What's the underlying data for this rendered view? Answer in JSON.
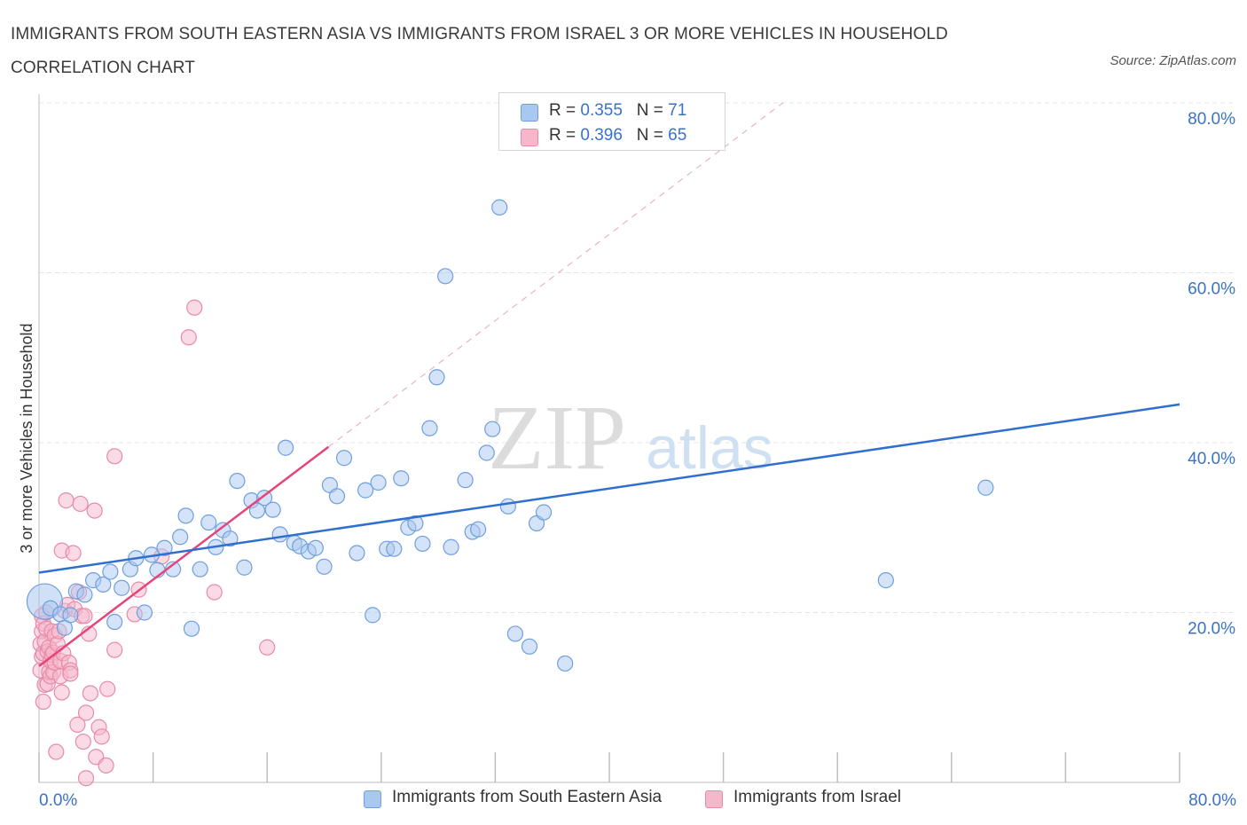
{
  "title": "IMMIGRANTS FROM SOUTH EASTERN ASIA VS IMMIGRANTS FROM ISRAEL 3 OR MORE VEHICLES IN HOUSEHOLD CORRELATION CHART",
  "source": "Source: ZipAtlas.com",
  "watermark": {
    "zip": "ZIP",
    "atlas": "atlas"
  },
  "legend_top": [
    {
      "r_label": "R = ",
      "r_value": "0.355",
      "n_label": "N = ",
      "n_value": "71"
    },
    {
      "r_label": "R = ",
      "r_value": "0.396",
      "n_label": "N = ",
      "n_value": "65"
    }
  ],
  "colors": {
    "blue_fill": "#a9c8f0",
    "blue_stroke": "#6f9fde",
    "blue_line": "#2f6fd0",
    "pink_fill": "#f5b8cb",
    "pink_stroke": "#e88aa7",
    "pink_line": "#e5457a",
    "axis_value": "#3a72c8",
    "grid": "#e4e4e4"
  },
  "chart_data": {
    "type": "scatter",
    "title": "IMMIGRANTS FROM SOUTH EASTERN ASIA VS IMMIGRANTS FROM ISRAEL 3 OR MORE VEHICLES IN HOUSEHOLD CORRELATION CHART",
    "xlabel": "",
    "ylabel": "3 or more Vehicles in Household",
    "xlim": [
      0,
      80
    ],
    "ylim": [
      0,
      80
    ],
    "x_tick_labels": [
      "0.0%",
      "80.0%"
    ],
    "y_tick_values": [
      20,
      40,
      60,
      80
    ],
    "y_tick_labels": [
      "20.0%",
      "40.0%",
      "60.0%",
      "80.0%"
    ],
    "grid": true,
    "legend_position": "top-center",
    "series": [
      {
        "name": "Immigrants from South Eastern Asia",
        "r": 0.355,
        "n": 71,
        "trend": {
          "x": [
            0,
            80
          ],
          "y": [
            24.7,
            44.5
          ]
        },
        "points": [
          [
            0.4,
            21.3
          ],
          [
            0.8,
            20.5
          ],
          [
            1.5,
            19.8
          ],
          [
            1.8,
            18.2
          ],
          [
            2.2,
            19.7
          ],
          [
            2.6,
            22.5
          ],
          [
            3.2,
            22.1
          ],
          [
            3.8,
            23.8
          ],
          [
            4.5,
            23.3
          ],
          [
            5.0,
            24.8
          ],
          [
            5.3,
            18.9
          ],
          [
            5.8,
            22.9
          ],
          [
            6.4,
            25.1
          ],
          [
            6.8,
            26.4
          ],
          [
            7.4,
            20.0
          ],
          [
            7.9,
            26.8
          ],
          [
            8.3,
            25.0
          ],
          [
            8.8,
            27.6
          ],
          [
            9.4,
            25.1
          ],
          [
            9.9,
            28.9
          ],
          [
            10.3,
            31.4
          ],
          [
            10.7,
            18.1
          ],
          [
            11.3,
            25.1
          ],
          [
            11.9,
            30.6
          ],
          [
            12.4,
            27.7
          ],
          [
            12.9,
            29.7
          ],
          [
            13.4,
            28.7
          ],
          [
            13.9,
            35.5
          ],
          [
            14.4,
            25.3
          ],
          [
            14.9,
            33.2
          ],
          [
            15.3,
            32.0
          ],
          [
            15.8,
            33.5
          ],
          [
            16.4,
            32.1
          ],
          [
            16.9,
            29.2
          ],
          [
            17.3,
            39.4
          ],
          [
            17.9,
            28.2
          ],
          [
            18.3,
            27.8
          ],
          [
            18.9,
            27.2
          ],
          [
            19.4,
            27.6
          ],
          [
            20.0,
            25.4
          ],
          [
            20.4,
            35.0
          ],
          [
            20.9,
            33.7
          ],
          [
            21.4,
            38.2
          ],
          [
            22.3,
            27.0
          ],
          [
            22.9,
            34.4
          ],
          [
            23.4,
            19.7
          ],
          [
            23.8,
            35.3
          ],
          [
            24.4,
            27.5
          ],
          [
            24.9,
            27.5
          ],
          [
            25.4,
            35.8
          ],
          [
            25.9,
            30.0
          ],
          [
            26.4,
            30.5
          ],
          [
            26.9,
            28.1
          ],
          [
            27.4,
            41.7
          ],
          [
            27.9,
            47.7
          ],
          [
            28.5,
            59.6
          ],
          [
            28.9,
            27.7
          ],
          [
            29.9,
            35.6
          ],
          [
            30.4,
            29.5
          ],
          [
            30.8,
            29.8
          ],
          [
            31.4,
            38.8
          ],
          [
            31.8,
            41.6
          ],
          [
            32.3,
            67.7
          ],
          [
            32.9,
            32.5
          ],
          [
            33.4,
            17.5
          ],
          [
            34.4,
            16.0
          ],
          [
            34.9,
            30.5
          ],
          [
            35.4,
            31.8
          ],
          [
            36.9,
            14.0
          ],
          [
            59.4,
            23.8
          ],
          [
            66.4,
            34.7
          ]
        ]
      },
      {
        "name": "Immigrants from Israel",
        "r": 0.396,
        "n": 65,
        "trend": {
          "x": [
            0,
            20.3
          ],
          "y": [
            13.7,
            39.5
          ]
        },
        "points": [
          [
            0.1,
            13.2
          ],
          [
            0.1,
            16.3
          ],
          [
            0.2,
            17.8
          ],
          [
            0.2,
            19.6
          ],
          [
            0.2,
            14.8
          ],
          [
            0.3,
            15.2
          ],
          [
            0.3,
            18.7
          ],
          [
            0.3,
            9.5
          ],
          [
            0.4,
            11.5
          ],
          [
            0.4,
            16.6
          ],
          [
            0.5,
            18.1
          ],
          [
            0.5,
            20.0
          ],
          [
            0.6,
            15.4
          ],
          [
            0.6,
            11.6
          ],
          [
            0.7,
            13.0
          ],
          [
            0.7,
            15.9
          ],
          [
            0.8,
            14.3
          ],
          [
            0.8,
            12.5
          ],
          [
            0.9,
            15.0
          ],
          [
            0.9,
            17.8
          ],
          [
            1.0,
            15.3
          ],
          [
            1.0,
            13.0
          ],
          [
            1.1,
            14.1
          ],
          [
            1.1,
            17.3
          ],
          [
            1.2,
            3.6
          ],
          [
            1.3,
            16.3
          ],
          [
            1.4,
            17.8
          ],
          [
            1.5,
            14.3
          ],
          [
            1.5,
            12.5
          ],
          [
            1.6,
            27.3
          ],
          [
            1.6,
            10.6
          ],
          [
            1.7,
            15.2
          ],
          [
            1.8,
            20.2
          ],
          [
            1.9,
            33.2
          ],
          [
            2.0,
            20.9
          ],
          [
            2.1,
            14.1
          ],
          [
            2.2,
            13.2
          ],
          [
            2.2,
            12.8
          ],
          [
            2.4,
            27.0
          ],
          [
            2.5,
            20.4
          ],
          [
            2.7,
            6.8
          ],
          [
            2.8,
            22.4
          ],
          [
            2.9,
            32.8
          ],
          [
            3.0,
            19.6
          ],
          [
            3.1,
            4.8
          ],
          [
            3.2,
            19.6
          ],
          [
            3.3,
            0.5
          ],
          [
            3.3,
            8.2
          ],
          [
            3.5,
            17.5
          ],
          [
            3.6,
            10.5
          ],
          [
            3.9,
            32.0
          ],
          [
            4.0,
            3.0
          ],
          [
            4.2,
            6.5
          ],
          [
            4.4,
            5.4
          ],
          [
            4.7,
            2.0
          ],
          [
            4.8,
            11.0
          ],
          [
            5.3,
            15.6
          ],
          [
            5.3,
            38.4
          ],
          [
            6.7,
            19.8
          ],
          [
            7.0,
            22.7
          ],
          [
            8.6,
            26.6
          ],
          [
            10.5,
            52.4
          ],
          [
            10.9,
            55.9
          ],
          [
            12.3,
            22.4
          ],
          [
            16.0,
            15.9
          ]
        ]
      }
    ]
  }
}
